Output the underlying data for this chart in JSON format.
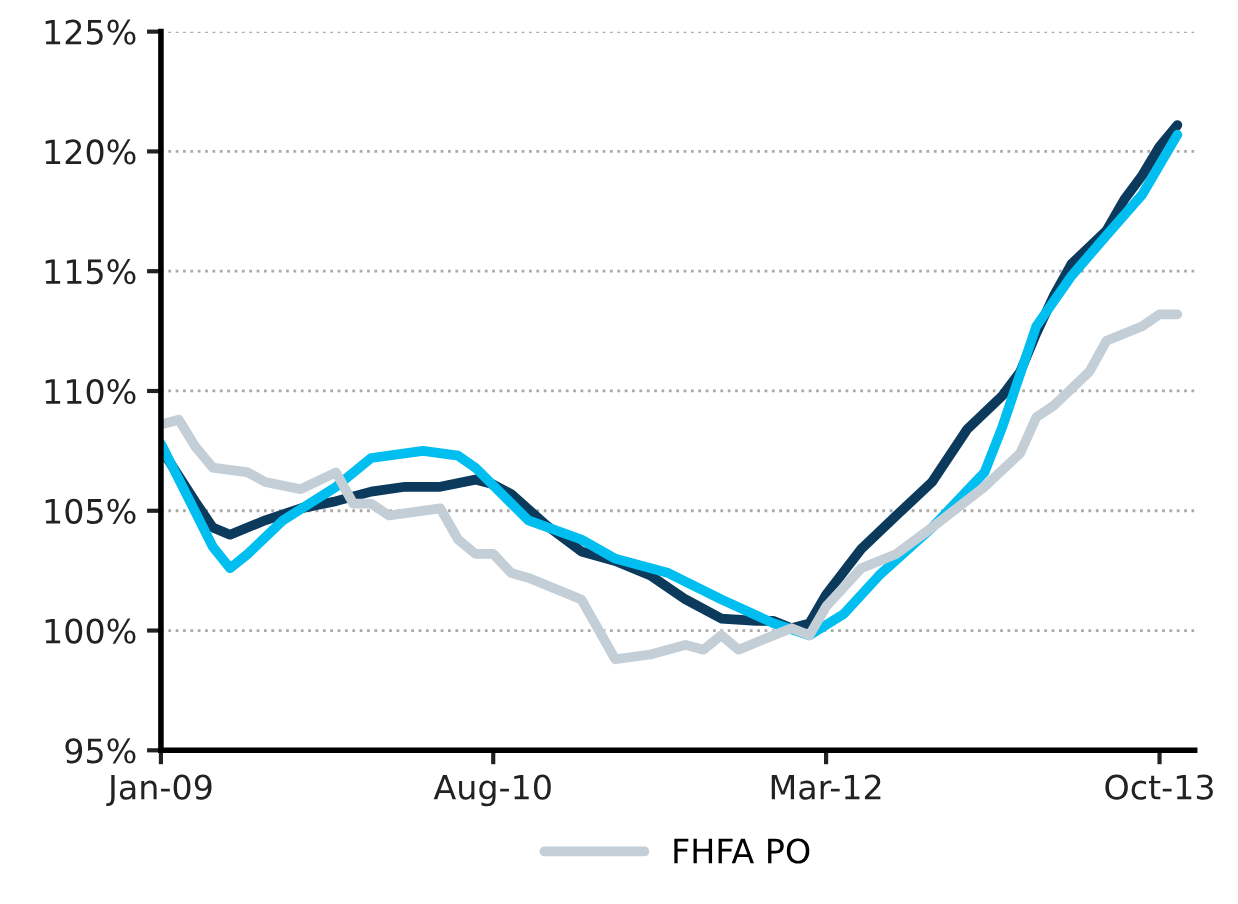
{
  "chart_data": {
    "type": "line",
    "legend": "bottom",
    "grid": "y",
    "line_style": "solid",
    "marker": "none",
    "xlim": [
      "2009-01",
      "2013-12"
    ],
    "xticks": [
      {
        "value": "2009-01",
        "label": "Jan-09"
      },
      {
        "value": "2010-08",
        "label": "Aug-10"
      },
      {
        "value": "2012-03",
        "label": "Mar-12"
      },
      {
        "value": "2013-10",
        "label": "Oct-13"
      }
    ],
    "ylim": [
      95,
      125
    ],
    "yticks": [
      {
        "value": 95,
        "label": "95%"
      },
      {
        "value": 100,
        "label": "100%"
      },
      {
        "value": 105,
        "label": "105%"
      },
      {
        "value": 110,
        "label": "110%"
      },
      {
        "value": 115,
        "label": "115%"
      },
      {
        "value": 120,
        "label": "120%"
      },
      {
        "value": 125,
        "label": "125%"
      }
    ],
    "series": [
      {
        "color": "#0b3a5c",
        "x": [
          "2009-01",
          "2009-03",
          "2009-04",
          "2009-05",
          "2009-07",
          "2009-09",
          "2009-11",
          "2010-01",
          "2010-03",
          "2010-05",
          "2010-07",
          "2010-08",
          "2010-09",
          "2010-11",
          "2011-01",
          "2011-03",
          "2011-05",
          "2011-07",
          "2011-09",
          "2011-11",
          "2011-12",
          "2012-01",
          "2012-02",
          "2012-03",
          "2012-05",
          "2012-07",
          "2012-09",
          "2012-11",
          "2013-01",
          "2013-02",
          "2013-03",
          "2013-04",
          "2013-05",
          "2013-07",
          "2013-08",
          "2013-09",
          "2013-10",
          "2013-11"
        ],
        "values": [
          107.6,
          105.4,
          104.3,
          104.0,
          104.6,
          105.1,
          105.4,
          105.8,
          106.0,
          106.0,
          106.3,
          106.1,
          105.7,
          104.4,
          103.3,
          102.9,
          102.3,
          101.3,
          100.5,
          100.4,
          100.4,
          100.1,
          100.3,
          101.5,
          103.4,
          104.8,
          106.2,
          108.4,
          109.8,
          110.8,
          112.4,
          114.0,
          115.3,
          116.7,
          118.0,
          119.0,
          120.2,
          121.1
        ]
      },
      {
        "color": "#00bff0",
        "x": [
          "2009-01",
          "2009-04",
          "2009-05",
          "2009-06",
          "2009-08",
          "2009-11",
          "2010-01",
          "2010-04",
          "2010-06",
          "2010-07",
          "2010-10",
          "2011-01",
          "2011-03",
          "2011-06",
          "2011-09",
          "2011-12",
          "2012-02",
          "2012-04",
          "2012-06",
          "2012-09",
          "2012-12",
          "2013-01",
          "2013-03",
          "2013-05",
          "2013-07",
          "2013-09",
          "2013-11"
        ],
        "values": [
          107.8,
          103.5,
          102.6,
          103.2,
          104.6,
          106.0,
          107.2,
          107.5,
          107.3,
          106.8,
          104.6,
          103.8,
          103.0,
          102.4,
          101.3,
          100.3,
          99.8,
          100.7,
          102.3,
          104.3,
          106.6,
          108.5,
          112.7,
          114.8,
          116.5,
          118.2,
          120.7
        ]
      },
      {
        "name": "FHFA PO",
        "color": "#c3ced6",
        "x": [
          "2009-01",
          "2009-02",
          "2009-03",
          "2009-04",
          "2009-06",
          "2009-07",
          "2009-09",
          "2009-11",
          "2009-12",
          "2010-01",
          "2010-02",
          "2010-05",
          "2010-06",
          "2010-07",
          "2010-08",
          "2010-09",
          "2010-10",
          "2011-01",
          "2011-03",
          "2011-05",
          "2011-07",
          "2011-08",
          "2011-09",
          "2011-10",
          "2011-12",
          "2012-01",
          "2012-02",
          "2012-03",
          "2012-05",
          "2012-07",
          "2012-09",
          "2012-12",
          "2013-02",
          "2013-03",
          "2013-04",
          "2013-06",
          "2013-07",
          "2013-09",
          "2013-10",
          "2013-11"
        ],
        "values": [
          108.6,
          108.8,
          107.7,
          106.8,
          106.6,
          106.2,
          105.9,
          106.6,
          105.3,
          105.3,
          104.8,
          105.1,
          103.8,
          103.2,
          103.2,
          102.4,
          102.2,
          101.3,
          98.8,
          99.0,
          99.4,
          99.2,
          99.8,
          99.2,
          99.8,
          100.1,
          99.8,
          101.0,
          102.6,
          103.2,
          104.3,
          106.0,
          107.4,
          108.9,
          109.4,
          110.8,
          112.1,
          112.7,
          113.2,
          113.2
        ]
      }
    ]
  }
}
